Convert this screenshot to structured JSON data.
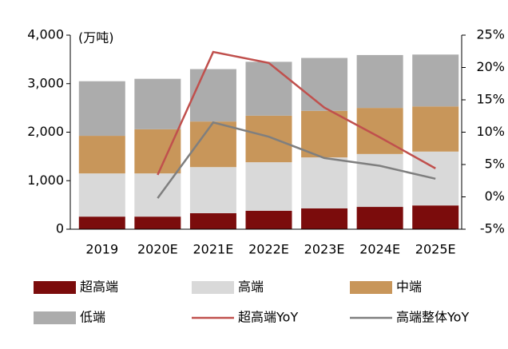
{
  "chart_data": {
    "type": "bar",
    "stacked": true,
    "unit_label": "(万吨)",
    "categories": [
      "2019",
      "2020E",
      "2021E",
      "2022E",
      "2023E",
      "2024E",
      "2025E"
    ],
    "series": [
      {
        "name": "超高端",
        "color": "#7b0c0c",
        "values": [
          260,
          260,
          330,
          380,
          430,
          460,
          490
        ]
      },
      {
        "name": "高端",
        "color": "#d9d9d9",
        "values": [
          890,
          890,
          950,
          1000,
          1050,
          1090,
          1110
        ]
      },
      {
        "name": "中端",
        "color": "#c8965a",
        "values": [
          775,
          910,
          940,
          960,
          960,
          950,
          930
        ]
      },
      {
        "name": "低端",
        "color": "#acacac",
        "values": [
          1125,
          1040,
          1080,
          1110,
          1090,
          1090,
          1070
        ]
      },
      {
        "name": "超高端YoY",
        "type": "line",
        "axis": "y2",
        "color": "#c0504d",
        "values": [
          null,
          3.4,
          22.4,
          20.7,
          13.8,
          9.2,
          4.4
        ]
      },
      {
        "name": "高端整体YoY",
        "type": "line",
        "axis": "y2",
        "color": "#7f7f7f",
        "values": [
          null,
          -0.2,
          11.5,
          9.3,
          6.0,
          4.8,
          2.8
        ]
      }
    ],
    "ylim": [
      0,
      4000
    ],
    "yticks": [
      0,
      {
        "value": 1000,
        "label": "1,000"
      },
      {
        "value": 2000,
        "label": "2,000"
      },
      {
        "value": 3000,
        "label": "3,000"
      },
      {
        "value": 4000,
        "label": "4,000"
      }
    ],
    "y2lim": [
      -5,
      25
    ],
    "y2ticks": [
      {
        "value": -5,
        "label": "-5%"
      },
      {
        "value": 0,
        "label": "0%"
      },
      {
        "value": 5,
        "label": "5%"
      },
      {
        "value": 10,
        "label": "10%"
      },
      {
        "value": 15,
        "label": "15%"
      },
      {
        "value": 20,
        "label": "20%"
      },
      {
        "value": 25,
        "label": "25%"
      }
    ],
    "grid": false
  }
}
